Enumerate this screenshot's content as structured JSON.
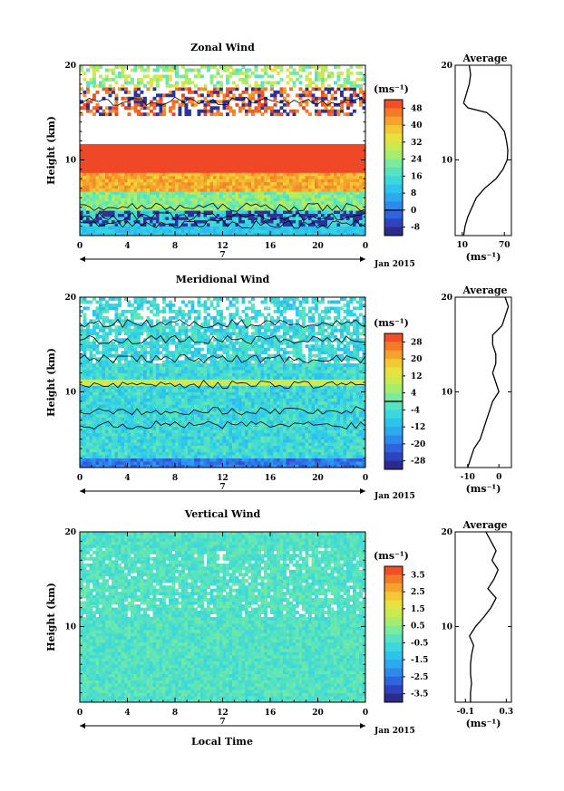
{
  "x_label": "Local Time",
  "date_label": "Jan 2015",
  "day_label": "7",
  "unit_label": "(ms⁻¹)",
  "y_label": "Height (km)",
  "avg_title": "Average",
  "x_ticks": [
    "0",
    "4",
    "8",
    "12",
    "16",
    "20",
    "0"
  ],
  "y_ticks": [
    "10",
    "20"
  ],
  "chart_data": [
    {
      "type": "heatmap",
      "title": "Zonal Wind",
      "xlabel": "",
      "ylabel": "Height (km)",
      "x_range_hours": [
        0,
        24
      ],
      "y_range_km": [
        2,
        20
      ],
      "colorbar": {
        "unit": "(ms⁻¹)",
        "tick_labels": [
          "48",
          "40",
          "32",
          "24",
          "16",
          "8",
          "0",
          "-8"
        ],
        "tick_values": [
          48,
          40,
          32,
          24,
          16,
          8,
          0,
          -8
        ],
        "range": [
          -12,
          52
        ]
      },
      "profile": {
        "title": "Average",
        "xlabel": "(ms⁻¹)",
        "x_tick_labels": [
          "10",
          "70"
        ],
        "x_tick_values": [
          10,
          70
        ],
        "x_range": [
          0,
          80
        ],
        "y_tick_labels": [
          "10",
          "20"
        ],
        "y_tick_values": [
          10,
          20
        ],
        "heights": [
          2,
          3,
          4,
          5,
          6,
          7,
          8,
          9,
          10,
          11,
          12,
          13,
          14,
          15,
          15.5,
          16,
          17,
          18,
          19,
          20
        ],
        "values": [
          12,
          14,
          18,
          24,
          30,
          42,
          58,
          68,
          74,
          75,
          73,
          70,
          60,
          45,
          18,
          12,
          16,
          20,
          22,
          20
        ]
      }
    },
    {
      "type": "heatmap",
      "title": "Meridional Wind",
      "xlabel": "",
      "ylabel": "Height (km)",
      "x_range_hours": [
        0,
        24
      ],
      "y_range_km": [
        2,
        20
      ],
      "colorbar": {
        "unit": "(ms⁻¹)",
        "tick_labels": [
          "28",
          "20",
          "12",
          "4",
          "-4",
          "-12",
          "-20",
          "-28"
        ],
        "tick_values": [
          28,
          20,
          12,
          4,
          -4,
          -12,
          -20,
          -28
        ],
        "range": [
          -32,
          32
        ]
      },
      "profile": {
        "title": "Average",
        "xlabel": "(ms⁻¹)",
        "x_tick_labels": [
          "-10",
          "0"
        ],
        "x_tick_values": [
          -10,
          0
        ],
        "x_range": [
          -14,
          4
        ],
        "y_tick_labels": [
          "10",
          "20"
        ],
        "y_tick_values": [
          10,
          20
        ],
        "heights": [
          2,
          3,
          4,
          5,
          6,
          7,
          8,
          9,
          10,
          11,
          12,
          13,
          14,
          15,
          16,
          17,
          18,
          19,
          20
        ],
        "values": [
          -10,
          -9,
          -8,
          -6,
          -5,
          -4,
          -3,
          -2,
          0,
          -1,
          -2,
          -1,
          -1,
          -2,
          -2,
          1,
          2,
          3,
          2
        ]
      }
    },
    {
      "type": "heatmap",
      "title": "Vertical Wind",
      "xlabel": "Local Time",
      "ylabel": "Height (km)",
      "x_range_hours": [
        0,
        24
      ],
      "y_range_km": [
        2,
        20
      ],
      "colorbar": {
        "unit": "(ms⁻¹)",
        "tick_labels": [
          "3.5",
          "2.5",
          "1.5",
          "0.5",
          "-0.5",
          "-1.5",
          "-2.5",
          "-3.5"
        ],
        "tick_values": [
          3.5,
          2.5,
          1.5,
          0.5,
          -0.5,
          -1.5,
          -2.5,
          -3.5
        ],
        "range": [
          -4,
          4
        ]
      },
      "profile": {
        "title": "Average",
        "xlabel": "(ms⁻¹)",
        "x_tick_labels": [
          "-0.1",
          "0.3"
        ],
        "x_tick_values": [
          -0.1,
          0.3
        ],
        "x_range": [
          -0.2,
          0.35
        ],
        "y_tick_labels": [
          "10",
          "20"
        ],
        "y_tick_values": [
          10,
          20
        ],
        "heights": [
          2,
          3,
          4,
          5,
          6,
          7,
          8,
          9,
          10,
          11,
          12,
          13,
          14,
          15,
          16,
          17,
          18,
          19,
          20
        ],
        "values": [
          -0.05,
          -0.05,
          -0.04,
          -0.05,
          -0.05,
          -0.04,
          -0.02,
          -0.06,
          0.0,
          0.08,
          0.15,
          0.2,
          0.12,
          0.18,
          0.22,
          0.16,
          0.2,
          0.15,
          0.1
        ]
      }
    }
  ]
}
